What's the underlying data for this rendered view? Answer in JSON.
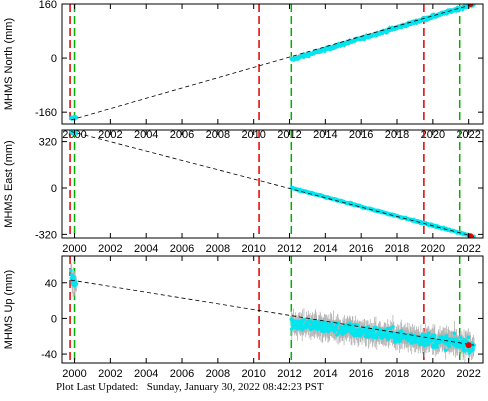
{
  "footer": {
    "label": "Plot Last Updated:",
    "timestamp": "Sunday, January 30, 2022 08:42:23 PST"
  },
  "colors": {
    "data": "#00e5ee",
    "error_bars": "#b4b4b4",
    "trend": "#000000",
    "red_marker": "#e00000",
    "red_line": "#e00000",
    "green_line": "#00b000",
    "axes": "#000000"
  },
  "chart_data": [
    {
      "type": "scatter",
      "ylabel": "MHMS North (mm)",
      "xlim": [
        1999.3,
        2022.8
      ],
      "ylim": [
        -195,
        160
      ],
      "yticks": [
        160,
        0,
        -160
      ],
      "xticks": [
        2000,
        2002,
        2004,
        2006,
        2008,
        2010,
        2012,
        2014,
        2016,
        2018,
        2020,
        2022
      ],
      "red_event_lines": [
        1999.75,
        2010.3,
        2019.5
      ],
      "green_event_lines": [
        2000.0,
        2012.1,
        2021.5
      ],
      "early_segment": {
        "x": [
          1999.8,
          2000.1
        ],
        "y": [
          -180,
          -175
        ]
      },
      "main_segment": {
        "x": [
          2012.1,
          2022.3
        ],
        "y": [
          -5,
          160
        ]
      },
      "trend_line": {
        "x": [
          1999.8,
          2022.3
        ],
        "y": [
          -183,
          160
        ]
      },
      "noise_mm": 3,
      "error_mm": 6,
      "last_point": {
        "x": 2022.1,
        "y": 160
      }
    },
    {
      "type": "scatter",
      "ylabel": "MHMS East (mm)",
      "xlim": [
        1999.3,
        2022.8
      ],
      "ylim": [
        -345,
        400
      ],
      "yticks": [
        320,
        0,
        -320
      ],
      "xticks": [
        2000,
        2002,
        2004,
        2006,
        2008,
        2010,
        2012,
        2014,
        2016,
        2018,
        2020,
        2022
      ],
      "red_event_lines": [
        1999.75,
        2010.3,
        2019.5
      ],
      "green_event_lines": [
        2000.0,
        2012.1,
        2021.5
      ],
      "early_segment": {
        "x": [
          1999.8,
          2000.1
        ],
        "y": [
          385,
          378
        ]
      },
      "main_segment": {
        "x": [
          2012.1,
          2022.3
        ],
        "y": [
          0,
          -335
        ]
      },
      "trend_line": {
        "x": [
          1999.8,
          2022.3
        ],
        "y": [
          390,
          -335
        ]
      },
      "noise_mm": 4,
      "error_mm": 8,
      "last_point": {
        "x": 2022.1,
        "y": -333
      }
    },
    {
      "type": "scatter",
      "ylabel": "MHMS Up (mm)",
      "xlim": [
        1999.3,
        2022.8
      ],
      "ylim": [
        -50,
        70
      ],
      "yticks": [
        40,
        0,
        -40
      ],
      "xticks": [
        2000,
        2002,
        2004,
        2006,
        2008,
        2010,
        2012,
        2014,
        2016,
        2018,
        2020,
        2022
      ],
      "red_event_lines": [
        1999.75,
        2010.3,
        2019.5
      ],
      "green_event_lines": [
        2000.0,
        2012.1,
        2021.5
      ],
      "early_segment": {
        "x": [
          1999.8,
          2000.1
        ],
        "y": [
          45,
          40
        ]
      },
      "main_segment": {
        "x": [
          2012.1,
          2022.3
        ],
        "y": [
          -5,
          -30
        ]
      },
      "trend_line": {
        "x": [
          1999.8,
          2022.3
        ],
        "y": [
          43,
          -30
        ]
      },
      "noise_mm": 5,
      "error_mm": 10,
      "last_point": {
        "x": 2022.0,
        "y": -30
      }
    }
  ]
}
